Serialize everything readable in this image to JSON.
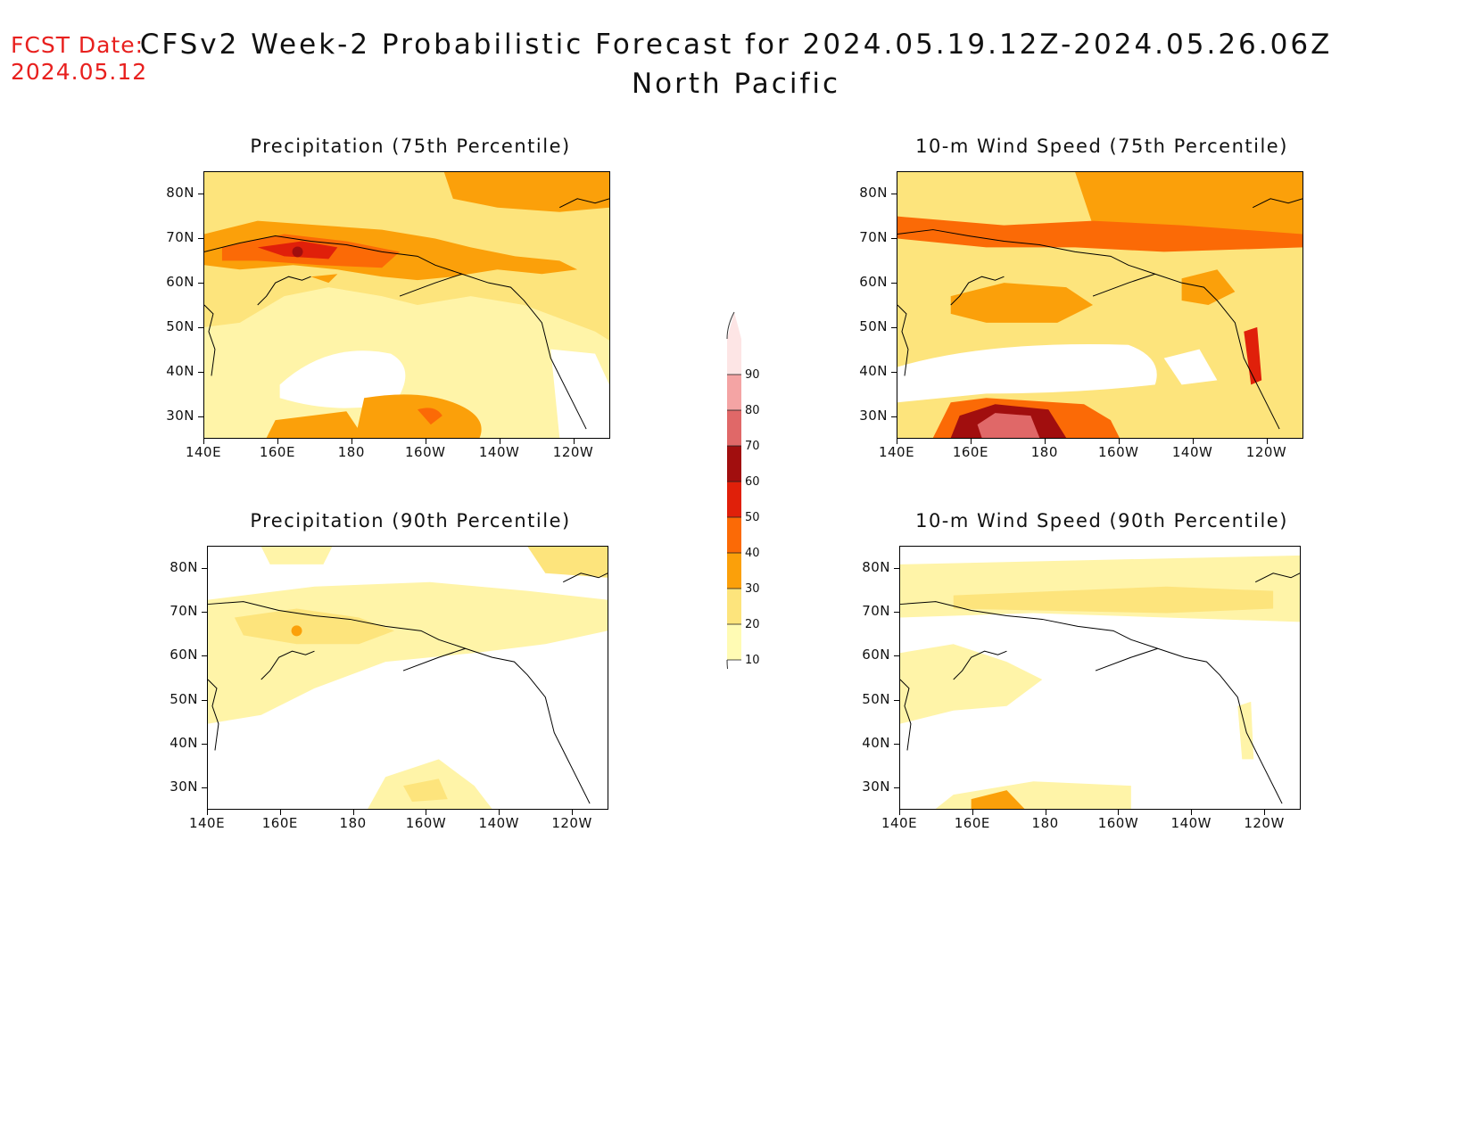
{
  "header": {
    "fcst_label": "FCST Date:",
    "fcst_date": "2024.05.12",
    "title": "CFSv2 Week-2 Probabilistic Forecast for 2024.05.19.12Z-2024.05.26.06Z",
    "subtitle": "North Pacific"
  },
  "axes": {
    "lat_labels": [
      "80N",
      "70N",
      "60N",
      "50N",
      "40N",
      "30N"
    ],
    "lon_labels": [
      "140E",
      "160E",
      "180",
      "160W",
      "140W",
      "120W"
    ]
  },
  "panels": [
    {
      "id": "precip-75",
      "title": "Precipitation (75th Percentile)"
    },
    {
      "id": "wind-75",
      "title": "10-m Wind Speed (75th Percentile)"
    },
    {
      "id": "precip-90",
      "title": "Precipitation (90th Percentile)"
    },
    {
      "id": "wind-90",
      "title": "10-m Wind Speed (90th Percentile)"
    }
  ],
  "colorbar": {
    "levels": [
      "90",
      "80",
      "70",
      "60",
      "50",
      "40",
      "30",
      "20",
      "10"
    ],
    "colors": [
      "#fde5e5",
      "#f4a4a4",
      "#e06868",
      "#a10e0e",
      "#e0200a",
      "#fb6a06",
      "#fba00a",
      "#fde47c",
      "#fffbb4"
    ]
  }
}
